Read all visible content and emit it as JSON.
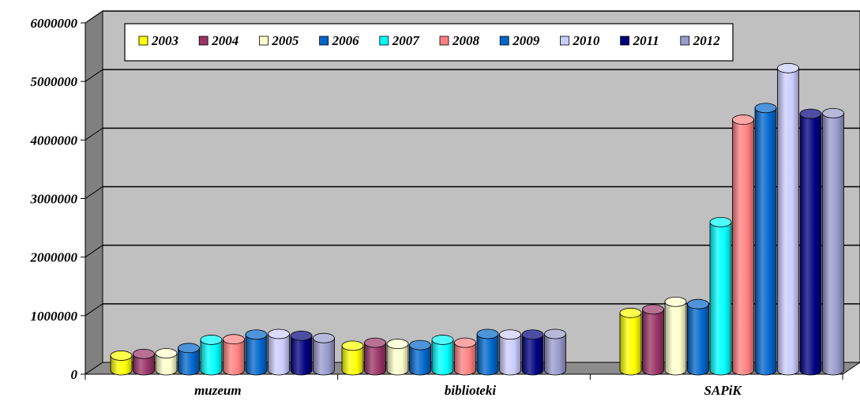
{
  "chart_data": {
    "type": "bar",
    "style": "3d-cylinder",
    "categories": [
      "muzeum",
      "biblioteki",
      "SAPiK"
    ],
    "ylim": [
      0,
      6000000
    ],
    "yticks": [
      "0",
      "1000000",
      "2000000",
      "3000000",
      "4000000",
      "5000000",
      "6000000"
    ],
    "grid": true,
    "legend_position": "top",
    "series": [
      {
        "name": "2003",
        "color": "#ffff00",
        "values": [
          250000,
          420000,
          980000
        ]
      },
      {
        "name": "2004",
        "color": "#993366",
        "values": [
          280000,
          470000,
          1040000
        ]
      },
      {
        "name": "2005",
        "color": "#ffffcc",
        "values": [
          290000,
          450000,
          1170000
        ]
      },
      {
        "name": "2006",
        "color": "#0066cc",
        "values": [
          380000,
          430000,
          1130000
        ]
      },
      {
        "name": "2007",
        "color": "#00ffff",
        "values": [
          520000,
          520000,
          2530000
        ]
      },
      {
        "name": "2008",
        "color": "#ff8080",
        "values": [
          530000,
          470000,
          4280000
        ]
      },
      {
        "name": "2009",
        "color": "#0066cc",
        "values": [
          610000,
          620000,
          4480000
        ]
      },
      {
        "name": "2010",
        "color": "#ccccff",
        "values": [
          620000,
          610000,
          5160000
        ]
      },
      {
        "name": "2011",
        "color": "#000080",
        "values": [
          590000,
          610000,
          4380000
        ]
      },
      {
        "name": "2012",
        "color": "#9999cc",
        "values": [
          550000,
          620000,
          4390000
        ]
      }
    ],
    "colors": {
      "plot_back": "#c0c0c0",
      "wall_side": "#808080",
      "floor": "#8c8c8c",
      "gridline": "#000000"
    }
  }
}
